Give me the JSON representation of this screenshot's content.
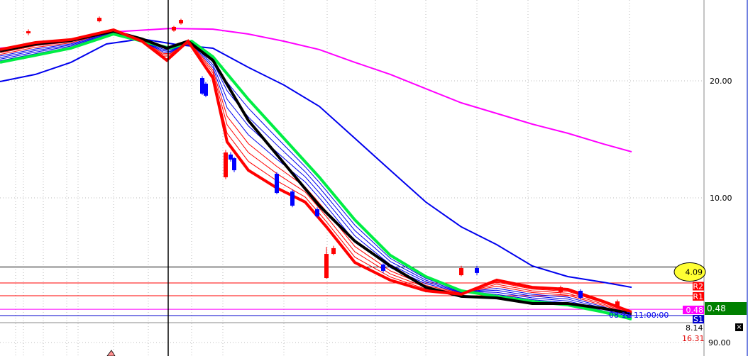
{
  "chart_data": {
    "type": "line",
    "title": "",
    "xlabel": "",
    "ylabel": "",
    "ylim": [
      -0.5,
      26.9
    ],
    "y_ticks": [
      "20.00",
      "10.00"
    ],
    "y_tick_values": [
      20,
      10
    ],
    "grid": true,
    "series": [
      {
        "color": "#ff00ff",
        "width": 2,
        "points": [
          [
            0,
            22.79
          ],
          [
            20,
            23.39
          ],
          [
            32,
            24.18
          ],
          [
            48,
            24.48
          ],
          [
            60,
            24.42
          ],
          [
            70,
            24.0
          ],
          [
            80,
            23.39
          ],
          [
            90,
            22.67
          ],
          [
            100,
            21.58
          ],
          [
            110,
            20.55
          ],
          [
            120,
            19.33
          ],
          [
            130,
            18.12
          ],
          [
            140,
            17.21
          ],
          [
            150,
            16.3
          ],
          [
            160,
            15.52
          ],
          [
            170,
            14.61
          ],
          [
            178,
            13.94
          ]
        ]
      },
      {
        "color": "#0000ee",
        "width": 2,
        "points": [
          [
            0,
            19.94
          ],
          [
            10,
            20.55
          ],
          [
            20,
            21.58
          ],
          [
            30,
            23.15
          ],
          [
            40,
            23.58
          ],
          [
            50,
            23.09
          ],
          [
            60,
            22.79
          ],
          [
            70,
            21.15
          ],
          [
            80,
            19.64
          ],
          [
            90,
            17.82
          ],
          [
            100,
            15.09
          ],
          [
            110,
            12.36
          ],
          [
            120,
            9.64
          ],
          [
            130,
            7.52
          ],
          [
            140,
            6.0
          ],
          [
            150,
            4.18
          ],
          [
            160,
            3.27
          ],
          [
            170,
            2.79
          ],
          [
            178,
            2.36
          ]
        ]
      },
      {
        "color": "#00ee44",
        "width": 4,
        "points": [
          [
            0,
            21.58
          ],
          [
            10,
            22.18
          ],
          [
            20,
            22.79
          ],
          [
            32,
            24.0
          ],
          [
            40,
            23.39
          ],
          [
            48,
            22.79
          ],
          [
            54,
            23.39
          ],
          [
            60,
            22.06
          ],
          [
            70,
            18.42
          ],
          [
            80,
            15.09
          ],
          [
            90,
            11.76
          ],
          [
            100,
            8.12
          ],
          [
            110,
            5.09
          ],
          [
            120,
            3.27
          ],
          [
            130,
            2.06
          ],
          [
            140,
            1.58
          ],
          [
            150,
            1.15
          ],
          [
            160,
            0.85
          ],
          [
            170,
            0.24
          ],
          [
            178,
            -0.36
          ]
        ]
      },
      {
        "color": "#000000",
        "width": 4,
        "points": [
          [
            0,
            22.55
          ],
          [
            10,
            23.15
          ],
          [
            20,
            23.45
          ],
          [
            32,
            24.24
          ],
          [
            40,
            23.58
          ],
          [
            47,
            22.79
          ],
          [
            53,
            23.39
          ],
          [
            60,
            21.76
          ],
          [
            70,
            16.61
          ],
          [
            80,
            12.97
          ],
          [
            90,
            9.33
          ],
          [
            100,
            6.3
          ],
          [
            110,
            4.18
          ],
          [
            120,
            2.36
          ],
          [
            130,
            1.58
          ],
          [
            140,
            1.45
          ],
          [
            150,
            0.97
          ],
          [
            160,
            0.97
          ],
          [
            170,
            0.55
          ],
          [
            178,
            0.12
          ]
        ]
      },
      {
        "color": "#ff0000",
        "width": 4,
        "points": [
          [
            0,
            22.67
          ],
          [
            10,
            23.27
          ],
          [
            20,
            23.52
          ],
          [
            32,
            24.36
          ],
          [
            40,
            23.39
          ],
          [
            47,
            21.76
          ],
          [
            53,
            23.39
          ],
          [
            60,
            20.24
          ],
          [
            64,
            14.79
          ],
          [
            70,
            12.36
          ],
          [
            78,
            10.85
          ],
          [
            86,
            9.64
          ],
          [
            92,
            7.52
          ],
          [
            100,
            4.48
          ],
          [
            110,
            2.97
          ],
          [
            120,
            2.06
          ],
          [
            130,
            1.76
          ],
          [
            140,
            2.97
          ],
          [
            150,
            2.36
          ],
          [
            160,
            2.18
          ],
          [
            170,
            1.15
          ],
          [
            178,
            0.24
          ]
        ]
      }
    ],
    "candles": [
      {
        "bar": 8,
        "open": 24.06,
        "close": 24.24,
        "high": 24.4,
        "low": 23.9,
        "dir": "up"
      },
      {
        "bar": 28,
        "open": 25.09,
        "close": 25.39,
        "high": 25.5,
        "low": 25.0,
        "dir": "up"
      },
      {
        "bar": 49,
        "open": 24.3,
        "close": 24.61,
        "high": 24.7,
        "low": 24.2,
        "dir": "up"
      },
      {
        "bar": 51,
        "open": 24.91,
        "close": 25.21,
        "high": 25.3,
        "low": 24.8,
        "dir": "up"
      },
      {
        "bar": 57,
        "open": 20.24,
        "close": 18.91,
        "high": 20.4,
        "low": 18.8,
        "dir": "down"
      },
      {
        "bar": 58,
        "open": 19.76,
        "close": 18.73,
        "high": 19.9,
        "low": 18.6,
        "dir": "down"
      },
      {
        "bar": 63.6,
        "open": 11.76,
        "close": 13.88,
        "high": 14.1,
        "low": 11.6,
        "dir": "up"
      },
      {
        "bar": 65,
        "open": 13.7,
        "close": 13.27,
        "high": 13.9,
        "low": 13.1,
        "dir": "down"
      },
      {
        "bar": 66,
        "open": 13.39,
        "close": 12.36,
        "high": 13.5,
        "low": 12.2,
        "dir": "down"
      },
      {
        "bar": 78,
        "open": 12.06,
        "close": 10.42,
        "high": 12.2,
        "low": 10.3,
        "dir": "down"
      },
      {
        "bar": 82.4,
        "open": 10.55,
        "close": 9.33,
        "high": 10.7,
        "low": 9.2,
        "dir": "down"
      },
      {
        "bar": 89.4,
        "open": 9.03,
        "close": 8.42,
        "high": 9.2,
        "low": 8.3,
        "dir": "down"
      },
      {
        "bar": 92,
        "open": 3.15,
        "close": 5.21,
        "high": 5.8,
        "low": 3.1,
        "dir": "up"
      },
      {
        "bar": 94,
        "open": 5.21,
        "close": 5.7,
        "high": 5.9,
        "low": 5.1,
        "dir": "up"
      },
      {
        "bar": 108,
        "open": 4.3,
        "close": 3.76,
        "high": 4.4,
        "low": 3.6,
        "dir": "down"
      },
      {
        "bar": 130,
        "open": 3.39,
        "close": 4.0,
        "high": 4.2,
        "low": 3.3,
        "dir": "up"
      },
      {
        "bar": 134.4,
        "open": 4.0,
        "close": 3.58,
        "high": 4.2,
        "low": 3.4,
        "dir": "down"
      },
      {
        "bar": 158,
        "open": 1.94,
        "close": 2.36,
        "high": 2.5,
        "low": 1.8,
        "dir": "up"
      },
      {
        "bar": 163.6,
        "open": 2.06,
        "close": 1.45,
        "high": 2.2,
        "low": 1.3,
        "dir": "down"
      },
      {
        "bar": 174,
        "open": 0.73,
        "close": 1.15,
        "high": 1.3,
        "low": 0.6,
        "dir": "up"
      }
    ],
    "levels": [
      {
        "value": 4.09,
        "color": "#000000",
        "label": "4.09",
        "style": "ellipse",
        "label_bg": "#ffff33"
      },
      {
        "value": 2.73,
        "color": "#ff0000",
        "label": "R2",
        "label_bg": "#ff0000"
      },
      {
        "value": 1.64,
        "color": "#ff0000",
        "label": "R1",
        "label_bg": "#ff0000"
      },
      {
        "value": 0.48,
        "color": "#ff00ff",
        "label": "0.48",
        "label_bg": "#ff00ff"
      },
      {
        "value": -0.06,
        "color": "#0000cc",
        "label": "S1",
        "label_bg": "#0000cc"
      }
    ],
    "current_price": {
      "label": "0.48",
      "color": "#008000"
    },
    "timestamp_label": "08 12 11:00:00",
    "crosshair_bar": 47.4,
    "colors": {
      "up": "#ff0000",
      "down": "#0000ff"
    }
  },
  "lower_pane": {
    "value1": "8.14",
    "value2": "16.31",
    "axis_label": "90.00",
    "close_icon": "×"
  }
}
